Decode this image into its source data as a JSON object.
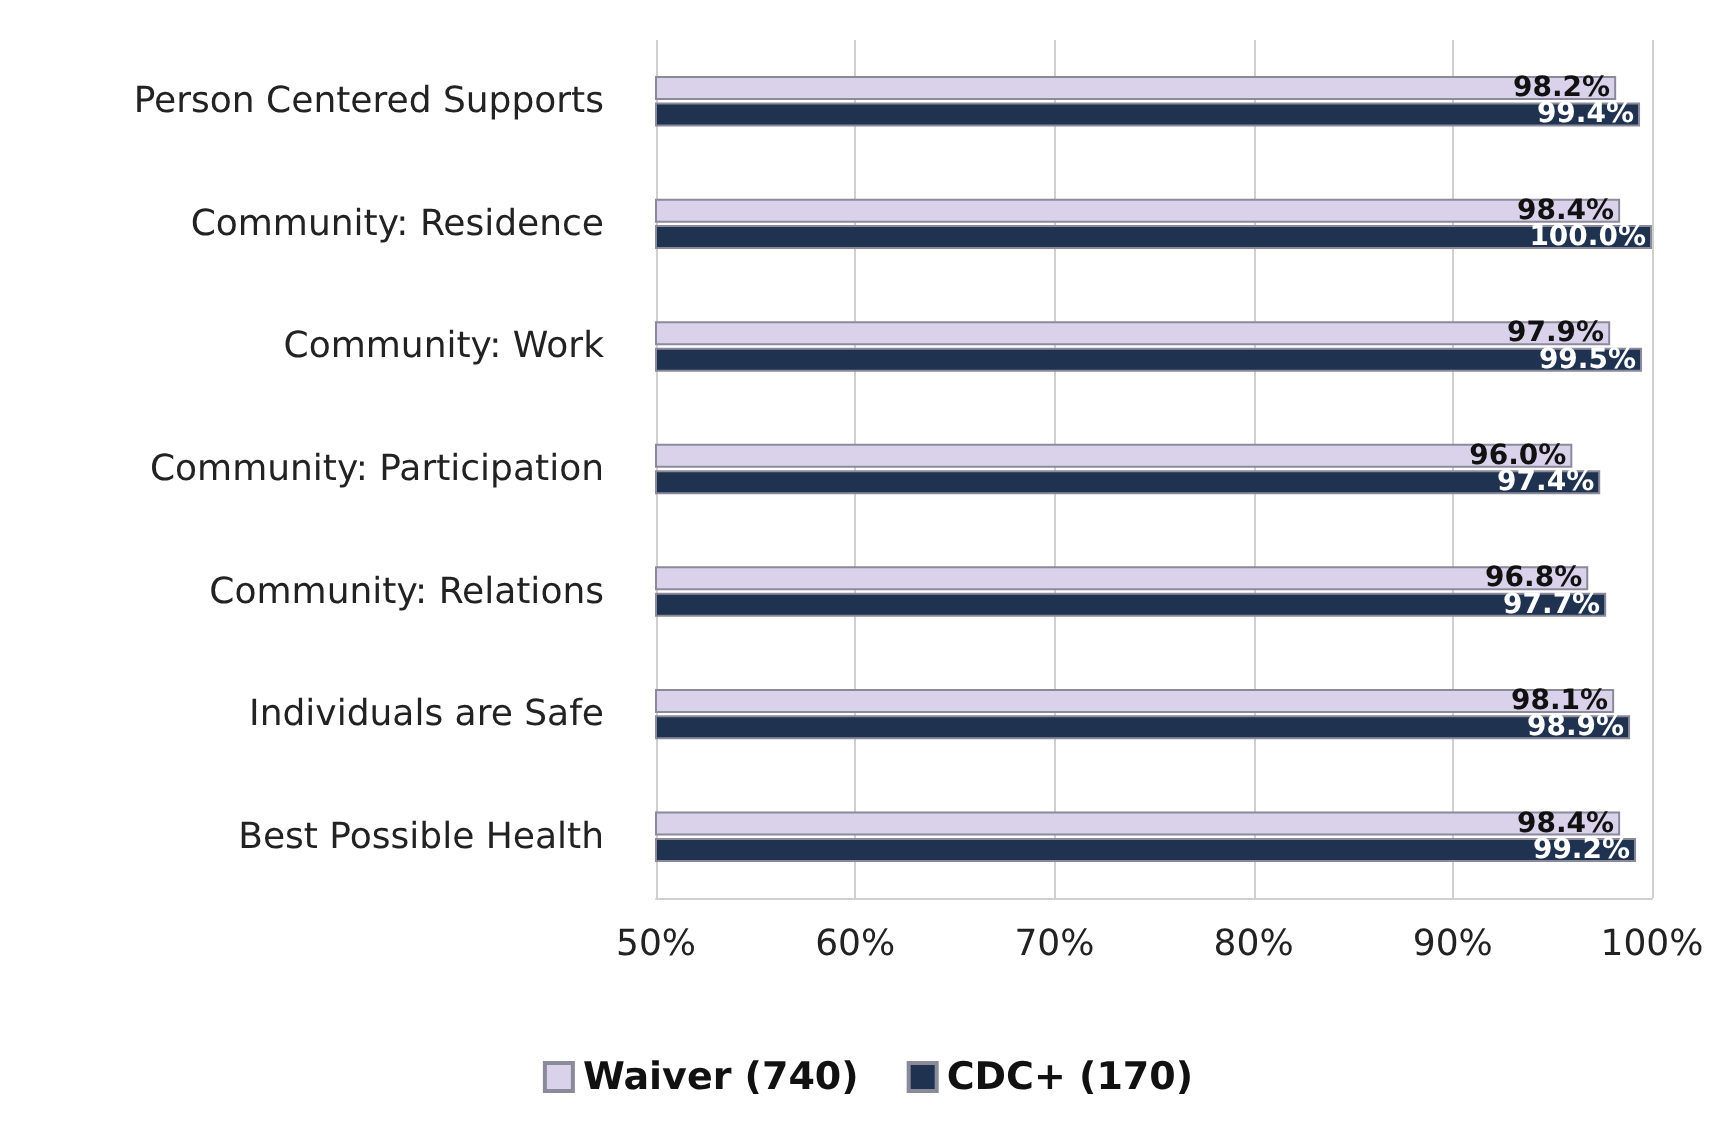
{
  "chart_data": {
    "type": "bar",
    "orientation": "horizontal",
    "categories": [
      "Person Centered Supports",
      "Community: Residence",
      "Community: Work",
      "Community: Participation",
      "Community: Relations",
      "Individuals are Safe",
      "Best Possible Health"
    ],
    "series": [
      {
        "name": "Waiver (740)",
        "color": "#d9d2ea",
        "values": [
          98.2,
          98.4,
          97.9,
          96.0,
          96.8,
          98.1,
          98.4
        ],
        "value_labels": [
          "98.2%",
          "98.4%",
          "97.9%",
          "96.0%",
          "96.8%",
          "98.1%",
          "98.4%"
        ]
      },
      {
        "name": "CDC+ (170)",
        "color": "#1f3350",
        "values": [
          99.4,
          100.0,
          99.5,
          97.4,
          97.7,
          98.9,
          99.2
        ],
        "value_labels": [
          "99.4%",
          "100.0%",
          "99.5%",
          "97.4%",
          "97.7%",
          "98.9%",
          "99.2%"
        ]
      }
    ],
    "xlim": [
      50,
      100
    ],
    "xticks": [
      {
        "value": 50,
        "label": "50%"
      },
      {
        "value": 60,
        "label": "60%"
      },
      {
        "value": 70,
        "label": "70%"
      },
      {
        "value": 80,
        "label": "80%"
      },
      {
        "value": 90,
        "label": "90%"
      },
      {
        "value": 100,
        "label": "100%"
      }
    ],
    "grid": "x",
    "legend": "bottom"
  }
}
